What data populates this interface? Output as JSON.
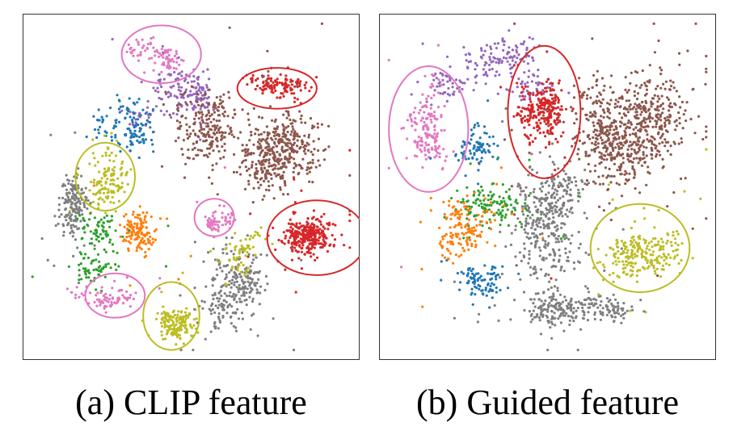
{
  "colors": {
    "blue": "#1f77b4",
    "orange": "#ff7f0e",
    "green": "#2ca02c",
    "red": "#d62728",
    "purple": "#9467bd",
    "brown": "#8c564b",
    "pink": "#e377c2",
    "gray": "#7f7f7f",
    "olive": "#bcbd22"
  },
  "chart_data": [
    {
      "type": "scatter",
      "caption": "(a) CLIP feature",
      "xlim": [
        0,
        100
      ],
      "ylim": [
        0,
        100
      ],
      "grid": false,
      "clusters": [
        {
          "color": "pink",
          "cx": 40,
          "cy": 88,
          "sx": 4.5,
          "sy": 3.5,
          "n": 90
        },
        {
          "color": "purple",
          "cx": 47,
          "cy": 78,
          "sx": 7,
          "sy": 6,
          "n": 180
        },
        {
          "color": "red",
          "cx": 75,
          "cy": 79,
          "sx": 7,
          "sy": 2.5,
          "n": 120
        },
        {
          "color": "brown",
          "cx": 72,
          "cy": 63,
          "sx": 12,
          "sy": 11,
          "n": 650
        },
        {
          "color": "blue",
          "cx": 31,
          "cy": 69,
          "sx": 6,
          "sy": 6,
          "n": 120
        },
        {
          "color": "olive",
          "cx": 24,
          "cy": 54,
          "sx": 5,
          "sy": 5,
          "n": 130
        },
        {
          "color": "gray",
          "cx": 13,
          "cy": 44,
          "sx": 4,
          "sy": 7,
          "n": 170
        },
        {
          "color": "pink",
          "cx": 57,
          "cy": 41,
          "sx": 3,
          "sy": 3,
          "n": 60
        },
        {
          "color": "red",
          "cx": 87,
          "cy": 36,
          "sx": 7,
          "sy": 5.5,
          "n": 320
        },
        {
          "color": "orange",
          "cx": 35,
          "cy": 35,
          "sx": 5,
          "sy": 6,
          "n": 140
        },
        {
          "color": "green",
          "cx": 24,
          "cy": 31,
          "sx": 7,
          "sy": 5,
          "n": 130
        },
        {
          "color": "pink",
          "cx": 26,
          "cy": 18,
          "sx": 4.5,
          "sy": 3,
          "n": 80
        },
        {
          "color": "olive",
          "cx": 44,
          "cy": 11,
          "sx": 5,
          "sy": 5,
          "n": 150
        },
        {
          "color": "gray",
          "cx": 62,
          "cy": 19,
          "sx": 7,
          "sy": 8,
          "n": 260
        },
        {
          "color": "olive",
          "cx": 65,
          "cy": 30,
          "sx": 5,
          "sy": 5,
          "n": 60
        }
      ],
      "circles": [
        {
          "color": "pink",
          "cx": 41,
          "cy": 89,
          "rx": 12,
          "ry": 8.5
        },
        {
          "color": "red",
          "cx": 76,
          "cy": 79,
          "rx": 12,
          "ry": 6
        },
        {
          "color": "olive",
          "cx": 24,
          "cy": 53,
          "rx": 9,
          "ry": 10
        },
        {
          "color": "pink",
          "cx": 57,
          "cy": 41,
          "rx": 6,
          "ry": 5.5
        },
        {
          "color": "red",
          "cx": 88,
          "cy": 35,
          "rx": 15,
          "ry": 11
        },
        {
          "color": "pink",
          "cx": 27,
          "cy": 18,
          "rx": 9,
          "ry": 6.5
        },
        {
          "color": "olive",
          "cx": 44,
          "cy": 12,
          "rx": 8.5,
          "ry": 10
        }
      ]
    },
    {
      "type": "scatter",
      "caption": "(b) Guided feature",
      "xlim": [
        0,
        100
      ],
      "ylim": [
        0,
        100
      ],
      "grid": false,
      "clusters": [
        {
          "color": "purple",
          "cx": 30,
          "cy": 84,
          "sx": 9,
          "sy": 6,
          "n": 220
        },
        {
          "color": "red",
          "cx": 49,
          "cy": 72,
          "sx": 5,
          "sy": 9,
          "n": 260
        },
        {
          "color": "brown",
          "cx": 73,
          "cy": 65,
          "sx": 12,
          "sy": 13,
          "n": 700
        },
        {
          "color": "pink",
          "cx": 13,
          "cy": 67,
          "sx": 4,
          "sy": 10,
          "n": 160
        },
        {
          "color": "blue",
          "cx": 27,
          "cy": 61,
          "sx": 4,
          "sy": 6,
          "n": 80
        },
        {
          "color": "green",
          "cx": 34,
          "cy": 45,
          "sx": 8,
          "sy": 5,
          "n": 140
        },
        {
          "color": "orange",
          "cx": 27,
          "cy": 43,
          "sx": 5,
          "sy": 5,
          "n": 90
        },
        {
          "color": "gray",
          "cx": 53,
          "cy": 40,
          "sx": 10,
          "sy": 10,
          "n": 380
        },
        {
          "color": "olive",
          "cx": 78,
          "cy": 33,
          "sx": 7,
          "sy": 7,
          "n": 230
        },
        {
          "color": "blue",
          "cx": 28,
          "cy": 22,
          "sx": 5,
          "sy": 5,
          "n": 90
        },
        {
          "color": "orange",
          "cx": 19,
          "cy": 32,
          "sx": 5,
          "sy": 5,
          "n": 60
        },
        {
          "color": "gray",
          "cx": 50,
          "cy": 15,
          "sx": 10,
          "sy": 5,
          "n": 170
        },
        {
          "color": "gray",
          "cx": 68,
          "cy": 14,
          "sx": 5,
          "sy": 4,
          "n": 80
        }
      ],
      "circles": [
        {
          "color": "pink",
          "cx": 14,
          "cy": 67,
          "rx": 12,
          "ry": 18.5
        },
        {
          "color": "red",
          "cx": 49,
          "cy": 72,
          "rx": 11,
          "ry": 19.5
        },
        {
          "color": "olive",
          "cx": 78,
          "cy": 32,
          "rx": 15,
          "ry": 13
        }
      ]
    }
  ]
}
